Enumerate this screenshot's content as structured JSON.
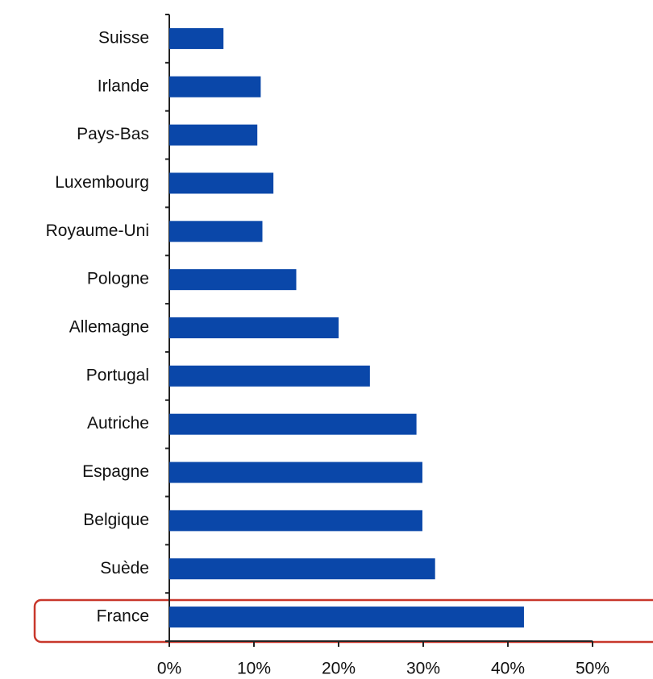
{
  "chart_data": {
    "type": "bar",
    "orientation": "horizontal",
    "categories": [
      "Suisse",
      "Irlande",
      "Pays-Bas",
      "Luxembourg",
      "Royaume-Uni",
      "Pologne",
      "Allemagne",
      "Portugal",
      "Autriche",
      "Espagne",
      "Belgique",
      "Suède",
      "France"
    ],
    "values": [
      6.4,
      10.8,
      10.4,
      12.3,
      11,
      15,
      20,
      23.7,
      29.2,
      29.9,
      29.9,
      31.4,
      41.9
    ],
    "color": "#0a47a9",
    "xlim": [
      0,
      50
    ],
    "xticks": [
      {
        "value": 0,
        "label": "0%"
      },
      {
        "value": 10,
        "label": "10%"
      },
      {
        "value": 20,
        "label": "20%"
      },
      {
        "value": 30,
        "label": "30%"
      },
      {
        "value": 40,
        "label": "40%"
      },
      {
        "value": 50,
        "label": "50%"
      }
    ]
  }
}
